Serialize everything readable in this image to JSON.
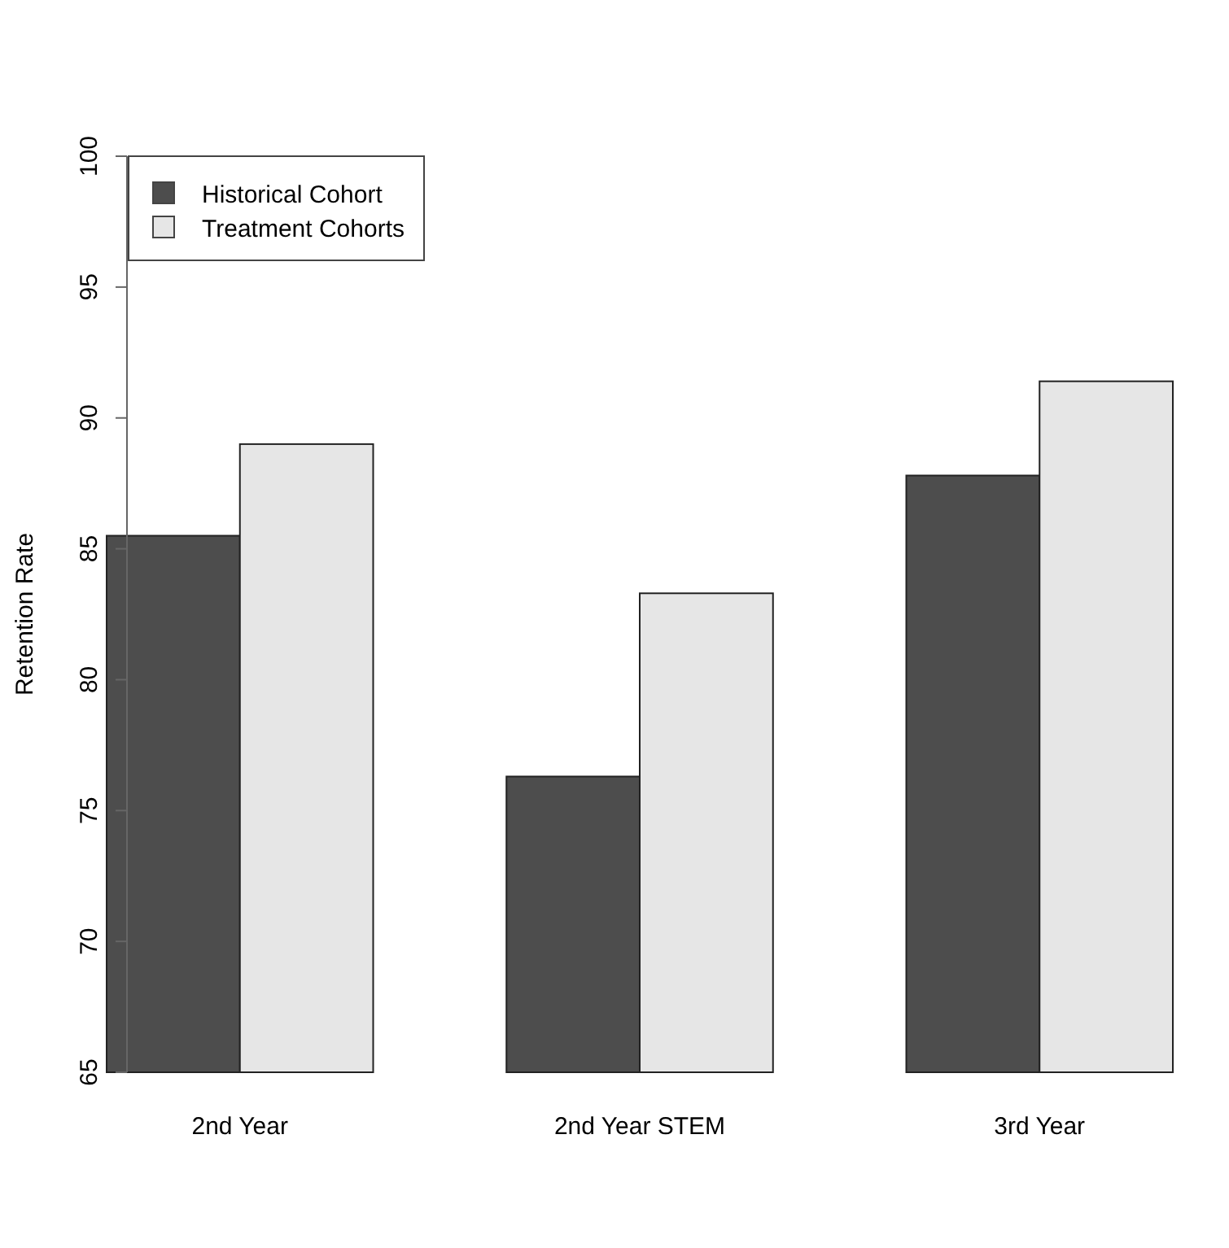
{
  "chart_data": {
    "type": "bar",
    "ylabel": "Retention Rate",
    "categories": [
      "2nd Year",
      "2nd Year STEM",
      "3rd Year"
    ],
    "series": [
      {
        "name": "Historical Cohort",
        "color": "#4d4d4d",
        "values": [
          85.5,
          76.3,
          87.8
        ]
      },
      {
        "name": "Treatment Cohorts",
        "color": "#e6e6e6",
        "values": [
          89.0,
          83.3,
          91.4
        ]
      }
    ],
    "ylim": [
      65,
      100
    ],
    "yticks": [
      65,
      70,
      75,
      80,
      85,
      90,
      95,
      100
    ],
    "grid": false,
    "legend": "top left"
  }
}
